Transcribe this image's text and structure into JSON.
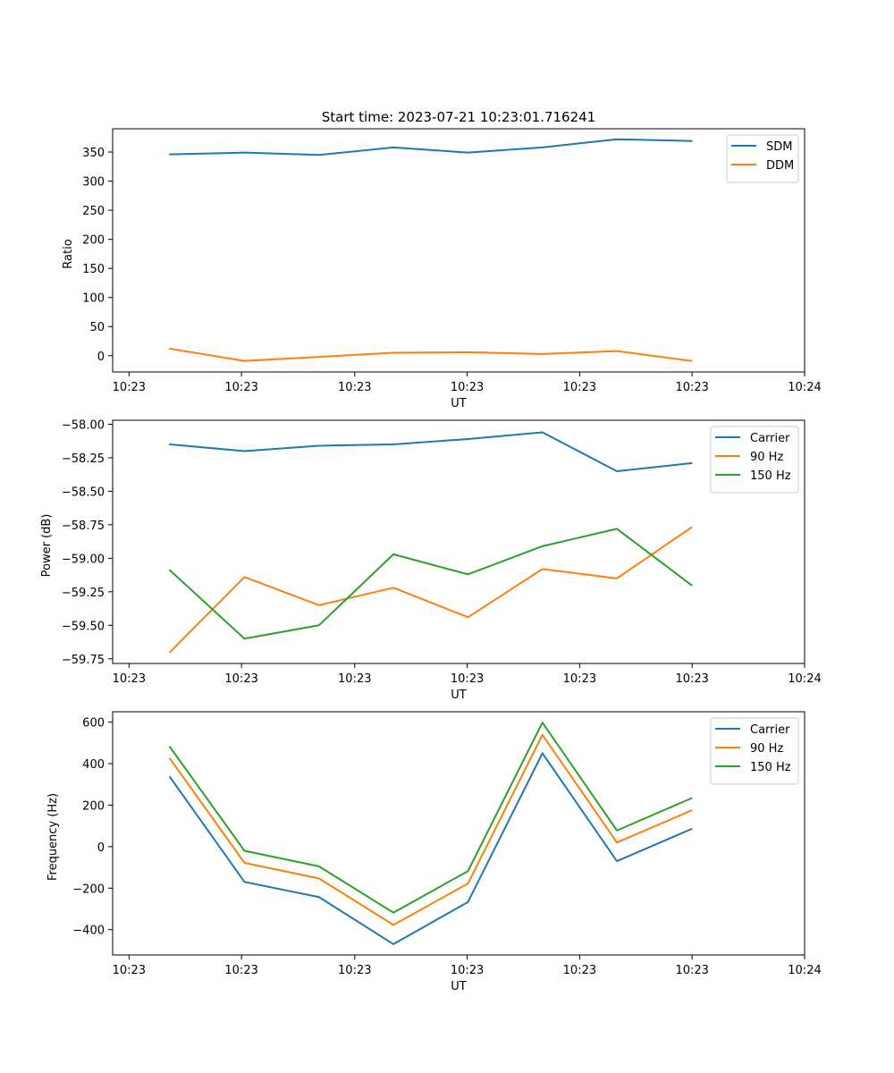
{
  "figure_title": "Start time: 2023-07-21 10:23:01.716241",
  "colors": {
    "blue": "#1f77b4",
    "orange": "#ff7f0e",
    "green": "#2ca02c"
  },
  "chart_data": [
    {
      "type": "line",
      "name": "ratio",
      "x": [
        1,
        2,
        3,
        4,
        5,
        6,
        7,
        8
      ],
      "xlim": [
        0.23,
        9.52
      ],
      "xticks": [
        0.45,
        1.96,
        3.48,
        4.99,
        6.5,
        8.01,
        9.52
      ],
      "xtick_labels": [
        "10:23",
        "10:23",
        "10:23",
        "10:23",
        "10:23",
        "10:23",
        "10:24"
      ],
      "xlabel": "UT",
      "ylabel": "Ratio",
      "ylim": [
        -28,
        390
      ],
      "yticks": [
        0,
        50,
        100,
        150,
        200,
        250,
        300,
        350
      ],
      "ytick_labels": [
        "0",
        "50",
        "100",
        "150",
        "200",
        "250",
        "300",
        "350"
      ],
      "legend_position": "top-right",
      "series": [
        {
          "name": "SDM",
          "color": "#1f77b4",
          "values": [
            346,
            349,
            345,
            358,
            349,
            358,
            372,
            369
          ]
        },
        {
          "name": "DDM",
          "color": "#ff7f0e",
          "values": [
            12,
            -9,
            -2,
            5,
            6,
            3,
            8,
            -9
          ]
        }
      ]
    },
    {
      "type": "line",
      "name": "power",
      "x": [
        1,
        2,
        3,
        4,
        5,
        6,
        7,
        8
      ],
      "xlim": [
        0.23,
        9.52
      ],
      "xticks": [
        0.45,
        1.96,
        3.48,
        4.99,
        6.5,
        8.01,
        9.52
      ],
      "xtick_labels": [
        "10:23",
        "10:23",
        "10:23",
        "10:23",
        "10:23",
        "10:23",
        "10:24"
      ],
      "xlabel": "UT",
      "ylabel": "Power (dB)",
      "ylim": [
        -59.785,
        -57.97
      ],
      "yticks": [
        -59.75,
        -59.5,
        -59.25,
        -59.0,
        -58.75,
        -58.5,
        -58.25,
        -58.0
      ],
      "ytick_labels": [
        "−59.75",
        "−59.50",
        "−59.25",
        "−59.00",
        "−58.75",
        "−58.50",
        "−58.25",
        "−58.00"
      ],
      "legend_position": "top-right",
      "series": [
        {
          "name": "Carrier",
          "color": "#1f77b4",
          "values": [
            -58.15,
            -58.2,
            -58.16,
            -58.15,
            -58.11,
            -58.06,
            -58.35,
            -58.29
          ]
        },
        {
          "name": "90 Hz",
          "color": "#ff7f0e",
          "values": [
            -59.7,
            -59.14,
            -59.35,
            -59.22,
            -59.44,
            -59.08,
            -59.15,
            -58.77
          ]
        },
        {
          "name": "150 Hz",
          "color": "#2ca02c",
          "values": [
            -59.09,
            -59.6,
            -59.5,
            -58.97,
            -59.12,
            -58.91,
            -58.78,
            -59.2
          ]
        }
      ]
    },
    {
      "type": "line",
      "name": "frequency",
      "x": [
        1,
        2,
        3,
        4,
        5,
        6,
        7,
        8
      ],
      "xlim": [
        0.23,
        9.52
      ],
      "xticks": [
        0.45,
        1.96,
        3.48,
        4.99,
        6.5,
        8.01,
        9.52
      ],
      "xtick_labels": [
        "10:23",
        "10:23",
        "10:23",
        "10:23",
        "10:23",
        "10:23",
        "10:24"
      ],
      "xlabel": "UT",
      "ylabel": "Frequency (Hz)",
      "ylim": [
        -522,
        650
      ],
      "yticks": [
        -400,
        -200,
        0,
        200,
        400,
        600
      ],
      "ytick_labels": [
        "−400",
        "−200",
        "0",
        "200",
        "400",
        "600"
      ],
      "legend_position": "top-right",
      "series": [
        {
          "name": "Carrier",
          "color": "#1f77b4",
          "values": [
            335,
            -170,
            -243,
            -470,
            -267,
            450,
            -70,
            85
          ]
        },
        {
          "name": "90 Hz",
          "color": "#ff7f0e",
          "values": [
            424,
            -78,
            -153,
            -377,
            -178,
            539,
            20,
            174
          ]
        },
        {
          "name": "150 Hz",
          "color": "#2ca02c",
          "values": [
            480,
            -20,
            -95,
            -318,
            -118,
            598,
            78,
            233
          ]
        }
      ]
    }
  ]
}
